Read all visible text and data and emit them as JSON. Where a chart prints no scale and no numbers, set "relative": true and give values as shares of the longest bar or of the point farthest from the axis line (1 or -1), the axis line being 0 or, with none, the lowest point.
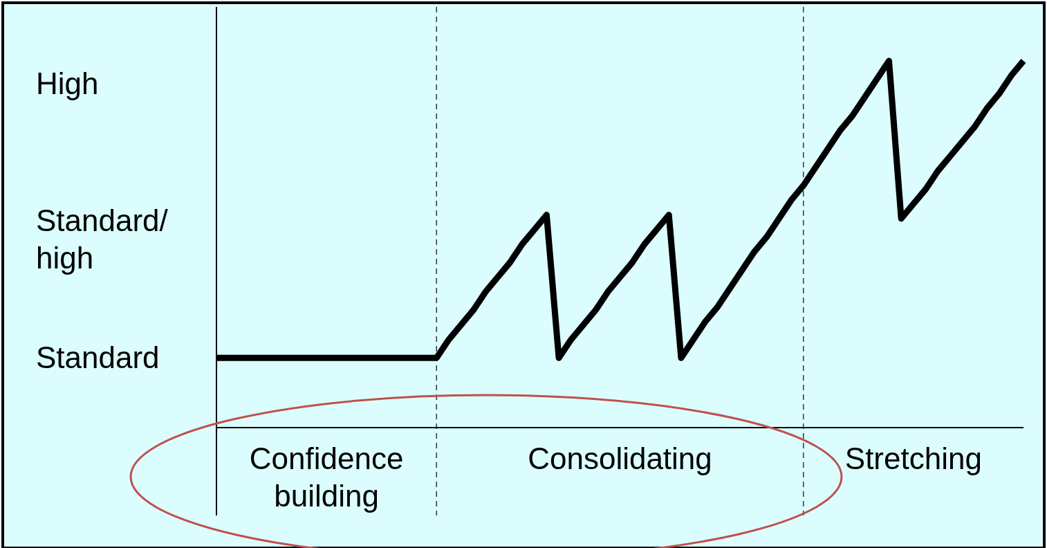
{
  "chart_data": {
    "type": "line",
    "relative": true,
    "categories": [
      null,
      null,
      null,
      null,
      null,
      null,
      null,
      null,
      null,
      "Confidence building",
      null,
      null,
      null,
      null,
      null,
      null,
      null,
      null,
      null,
      null,
      null,
      null,
      null,
      null,
      null,
      null,
      null,
      null,
      null,
      null,
      null,
      null,
      null,
      "Consolidating",
      null,
      null,
      null,
      null,
      null,
      null,
      null,
      null,
      null,
      null,
      null,
      null,
      null,
      null,
      null,
      null,
      null,
      null,
      null,
      null,
      null,
      null,
      null,
      "Stretching",
      null,
      null,
      null,
      null,
      null,
      null,
      null,
      null,
      null
    ],
    "annotations": [
      "Standard",
      "Standard/ high",
      "High"
    ],
    "marker": "none",
    "line_style": "solid",
    "series": [
      {
        "color": "#000000",
        "values": [
          0.19,
          0.19,
          0.19,
          0.19,
          0.19,
          0.19,
          0.19,
          0.19,
          0.19,
          0.19,
          0.19,
          0.19,
          0.19,
          0.19,
          0.19,
          0.19,
          0.19,
          0.19,
          0.19,
          0.24,
          0.28,
          0.32,
          0.37,
          0.41,
          0.45,
          0.5,
          0.54,
          0.58,
          0.19,
          0.24,
          0.28,
          0.32,
          0.37,
          0.41,
          0.45,
          0.5,
          0.54,
          0.58,
          0.19,
          0.24,
          0.29,
          0.33,
          0.38,
          0.43,
          0.48,
          0.52,
          0.57,
          0.62,
          0.66,
          0.71,
          0.76,
          0.81,
          0.85,
          0.9,
          0.95,
          1,
          0.57,
          0.61,
          0.65,
          0.7,
          0.74,
          0.78,
          0.82,
          0.87,
          0.91,
          0.96,
          1
        ]
      }
    ]
  }
}
